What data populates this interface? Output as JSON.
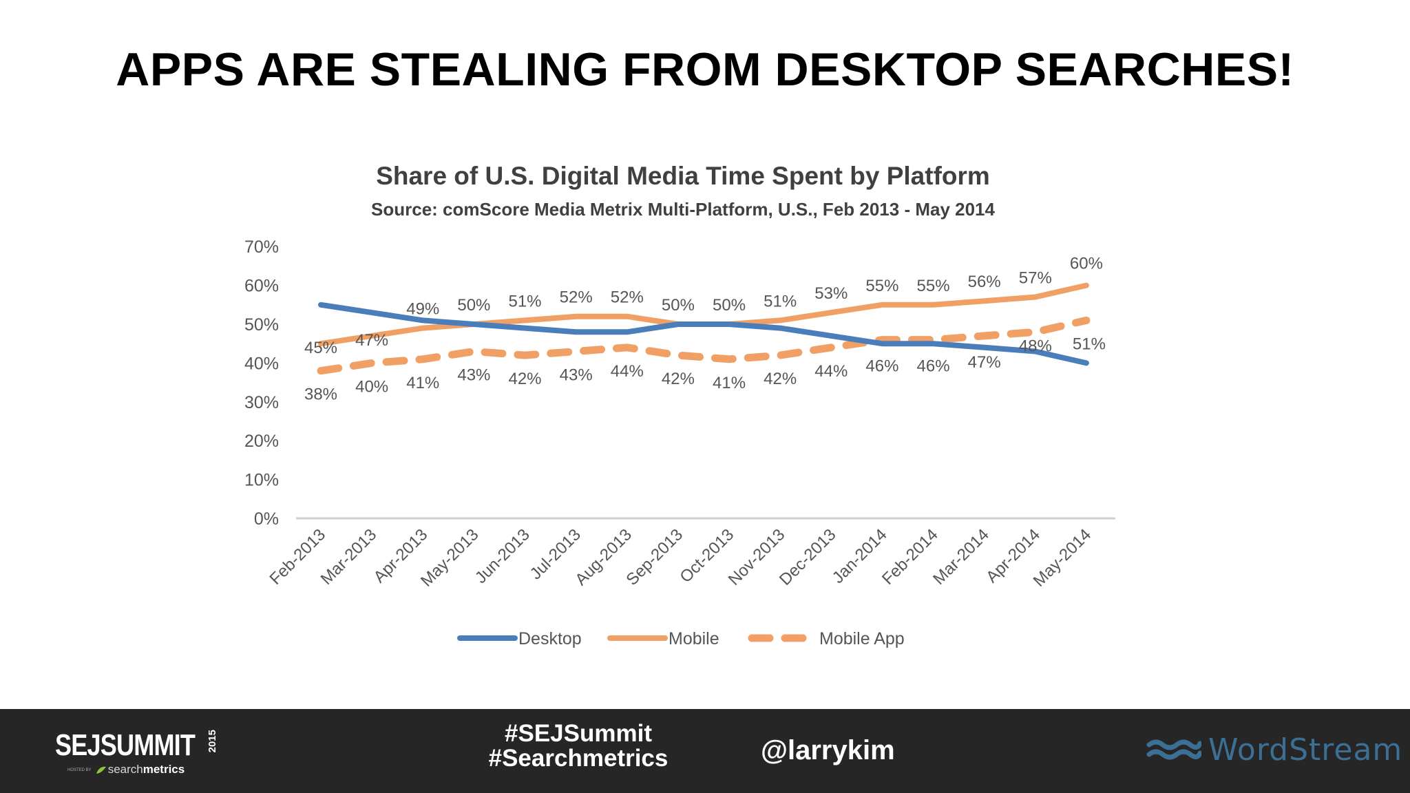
{
  "slide": {
    "title": "APPS ARE STEALING FROM DESKTOP SEARCHES!"
  },
  "chart_data": {
    "type": "line",
    "title": "Share of U.S. Digital Media Time Spent by Platform",
    "subtitle": "Source: comScore Media Metrix Multi-Platform, U.S., Feb 2013 - May 2014",
    "xlabel": "",
    "ylabel": "",
    "ylim": [
      0,
      70
    ],
    "y_ticks": [
      "0%",
      "10%",
      "20%",
      "30%",
      "40%",
      "50%",
      "60%",
      "70%"
    ],
    "grid": false,
    "legend_position": "bottom",
    "categories": [
      "Feb-2013",
      "Mar-2013",
      "Apr-2013",
      "May-2013",
      "Jun-2013",
      "Jul-2013",
      "Aug-2013",
      "Sep-2013",
      "Oct-2013",
      "Nov-2013",
      "Dec-2013",
      "Jan-2014",
      "Feb-2014",
      "Mar-2014",
      "Apr-2014",
      "May-2014"
    ],
    "series": [
      {
        "name": "Desktop",
        "color": "#4a7ebb",
        "style": "solid",
        "values": [
          55,
          53,
          51,
          50,
          49,
          48,
          48,
          50,
          50,
          49,
          47,
          45,
          45,
          44,
          43,
          40
        ],
        "labels": {
          "0": "",
          "15": ""
        }
      },
      {
        "name": "Mobile",
        "color": "#f0a064",
        "style": "solid",
        "values": [
          45,
          47,
          49,
          50,
          51,
          52,
          52,
          50,
          50,
          51,
          53,
          55,
          55,
          56,
          57,
          60
        ],
        "labels": [
          "45%",
          "47%",
          "49%",
          "50%",
          "51%",
          "52%",
          "52%",
          "50%",
          "50%",
          "51%",
          "53%",
          "55%",
          "55%",
          "56%",
          "57%",
          "60%"
        ]
      },
      {
        "name": "Mobile App",
        "color": "#f0a064",
        "style": "dashed",
        "values": [
          38,
          40,
          41,
          43,
          42,
          43,
          44,
          42,
          41,
          42,
          44,
          46,
          46,
          47,
          48,
          51
        ],
        "labels": [
          "38%",
          "40%",
          "41%",
          "43%",
          "42%",
          "43%",
          "44%",
          "42%",
          "41%",
          "42%",
          "44%",
          "46%",
          "46%",
          "47%",
          "48%",
          "51%"
        ]
      }
    ]
  },
  "footer": {
    "event_logo": {
      "main": "SEJSUMMIT",
      "year": "2015",
      "hosted_by": "HOSTED BY",
      "sponsor_light": "search",
      "sponsor_bold": "metrics"
    },
    "hashtag_1": "#SEJSummit",
    "hashtag_2": "#Searchmetrics",
    "handle": "@larrykim",
    "brand_logo": "WordStream",
    "brand_color": "#3b6f94"
  }
}
